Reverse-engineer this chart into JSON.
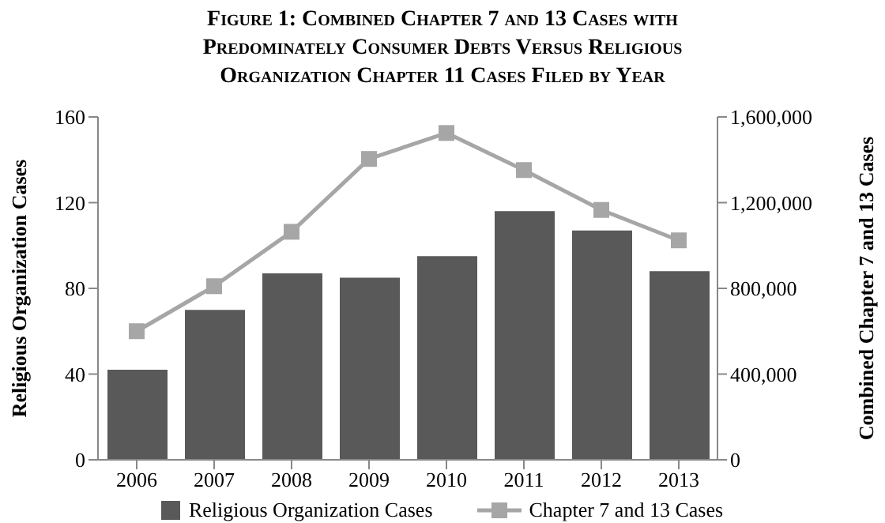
{
  "chart_data": {
    "type": "bar",
    "title": "Figure 1: Combined Chapter 7 and 13 Cases with Predominately Consumer Debts Versus Religious Organization Chapter 11 Cases Filed by Year",
    "categories": [
      "2006",
      "2007",
      "2008",
      "2009",
      "2010",
      "2011",
      "2012",
      "2013"
    ],
    "series": [
      {
        "name": "Religious Organization Cases",
        "color": "#595959",
        "values": [
          42,
          70,
          87,
          85,
          95,
          116,
          107,
          88
        ]
      },
      {
        "name": "Chapter 7 and 13 Cases",
        "type": "line",
        "axis": "y2",
        "color": "#a6a6a6",
        "marker": "square",
        "values": [
          600000,
          810000,
          1064000,
          1404000,
          1525000,
          1352000,
          1166000,
          1024000
        ]
      }
    ],
    "ylabel": "Religious Organization Cases",
    "y2label": "Combined Chapter 7 and 13 Cases",
    "ylim": [
      0,
      160
    ],
    "yticks": [
      0,
      40,
      80,
      120,
      160
    ],
    "y2lim": [
      0,
      1600000
    ],
    "y2ticks": [
      {
        "value": 0,
        "label": "0"
      },
      {
        "value": 400000,
        "label": "400,000"
      },
      {
        "value": 800000,
        "label": "800,000"
      },
      {
        "value": 1200000,
        "label": "1,200,000"
      },
      {
        "value": 1600000,
        "label": "1,600,000"
      }
    ],
    "grid": false,
    "legend": "bottom"
  }
}
